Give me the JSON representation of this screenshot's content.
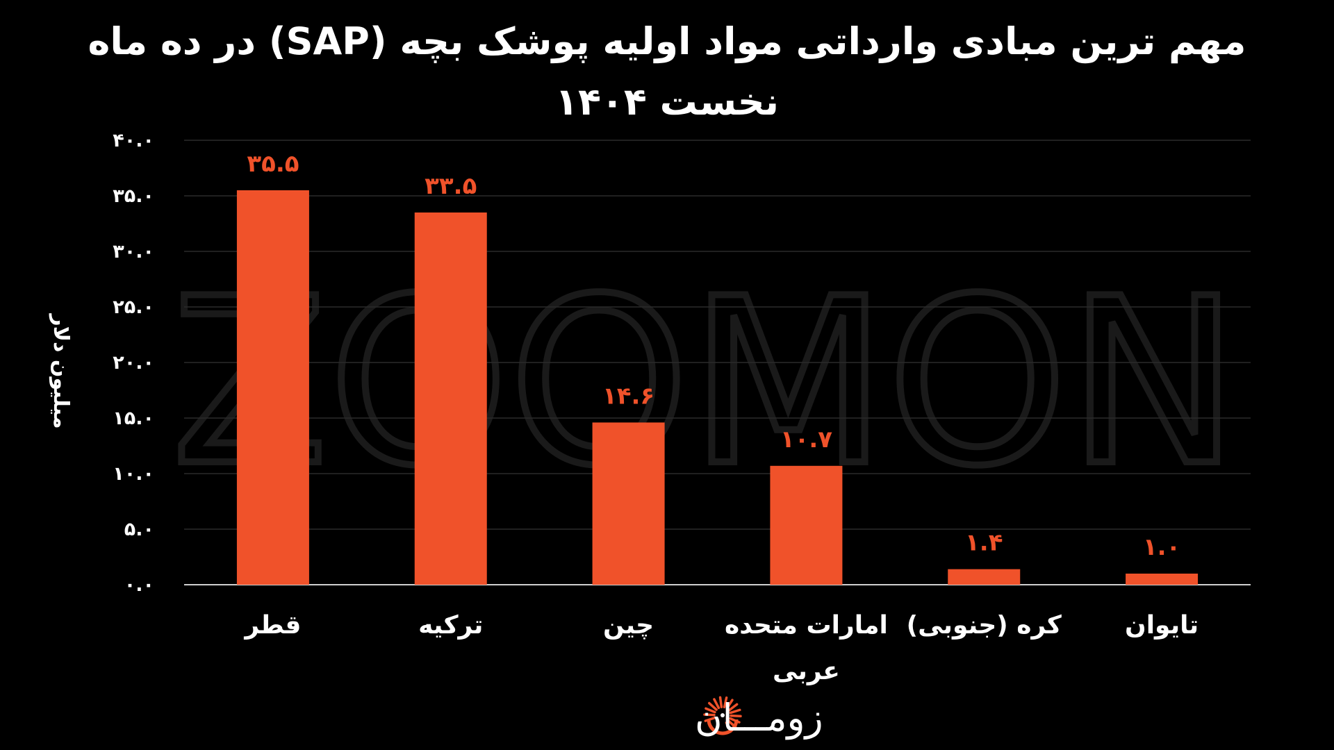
{
  "chart_data": {
    "type": "bar",
    "title_lines": [
      "مهم ترین مبادی وارداتی مواد اولیه پوشک بچه (SAP) در ده ماه",
      "نخست ۱۴۰۴"
    ],
    "ylabel": "میلیون دلار",
    "ylim": [
      0,
      40
    ],
    "yticks": [
      0,
      5,
      10,
      15,
      20,
      25,
      30,
      35,
      40
    ],
    "ytick_labels": [
      "۰.۰",
      "۵.۰",
      "۱۰.۰",
      "۱۵.۰",
      "۲۰.۰",
      "۲۵.۰",
      "۳۰.۰",
      "۳۵.۰",
      "۴۰.۰"
    ],
    "categories": [
      [
        "قطر"
      ],
      [
        "ترکیه"
      ],
      [
        "چین"
      ],
      [
        "امارات متحده",
        "عربی"
      ],
      [
        "کره (جنوبی)"
      ],
      [
        "تایوان"
      ]
    ],
    "values": [
      35.5,
      33.5,
      14.6,
      10.7,
      1.4,
      1.0
    ],
    "value_labels": [
      "۳۵.۵",
      "۳۳.۵",
      "۱۴.۶",
      "۱۰.۷",
      "۱.۴",
      "۱.۰"
    ],
    "grid": true,
    "bar_color": "#f0522a",
    "label_color": "#f0522a",
    "grid_color": "#2a2a2a",
    "axis_color": "#d0d0d0"
  },
  "branding": {
    "watermark": "ZOOMON",
    "logo_text": "زومـــان",
    "logo_icon": "sunburst-logo-icon",
    "accent": "#f0522a"
  }
}
